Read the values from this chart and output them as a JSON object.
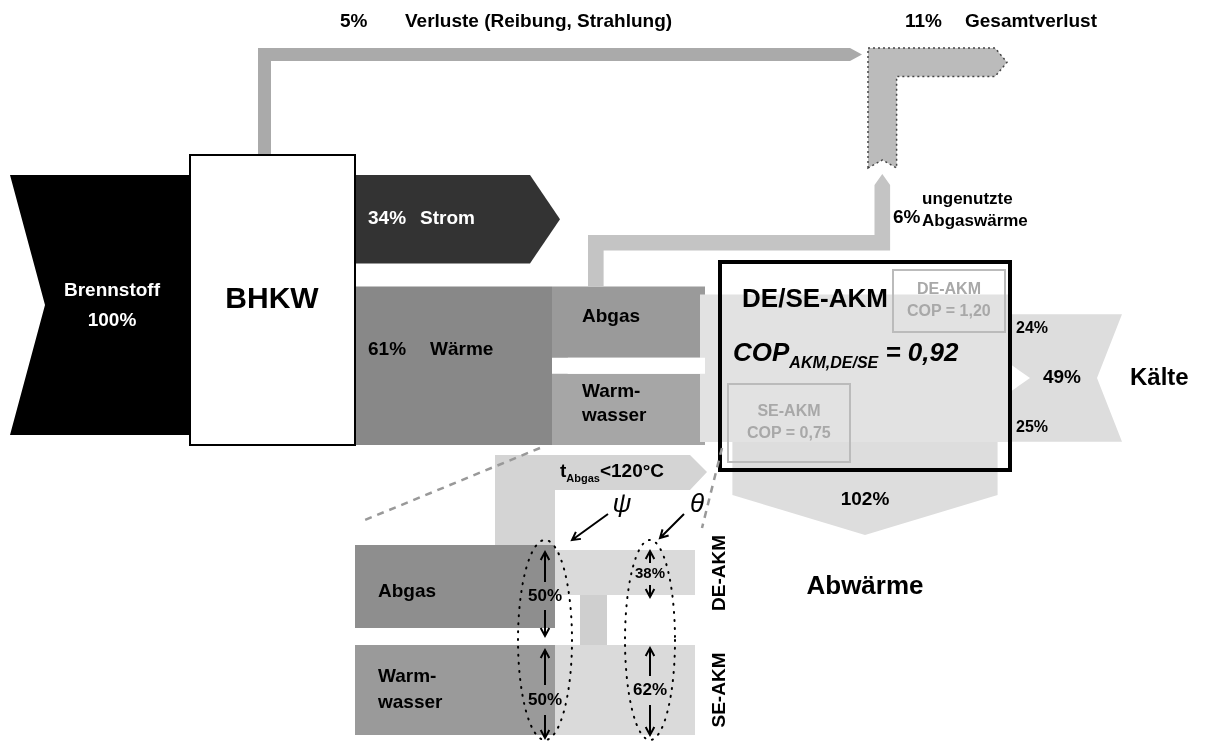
{
  "chart_data": {
    "type": "other",
    "categories": [
      "Brennstoff",
      "Strom",
      "Wärme",
      "Verluste (Reibung, Strahlung)",
      "Gesamtverlust",
      "ungenutzte\nAbgaswärme",
      "Kälte",
      "Abwärme"
    ],
    "values": [
      100,
      34,
      61,
      5,
      11,
      6,
      49,
      102
    ],
    "value_labels": [
      "100%",
      "34%",
      "61%",
      "5%",
      "11%",
      "6%",
      "49%",
      "102%"
    ],
    "colors": [
      "#000000",
      "#333333",
      "#888888",
      "#aaaaaa",
      "#bbbbbb",
      "#c4c4c4",
      "#dddddd",
      "#dddddd"
    ],
    "annotations": [
      "BHKW",
      "Abgas",
      "Warm-\nwasser",
      "DE-AKM\nCOP = 1,20",
      "SE-AKM\nCOP = 0,75",
      "DE/SE-AKM",
      "COP$_{AKM,DE/SE}$ = 0,92",
      "24%",
      "25%",
      "t$_{Abgas}$<120°C",
      "ψ",
      "θ",
      "Abgas",
      "Warm-\nwasser",
      "50%",
      "50%",
      "38%",
      "62%",
      "DE-AKM",
      "SE-AKM"
    ]
  }
}
